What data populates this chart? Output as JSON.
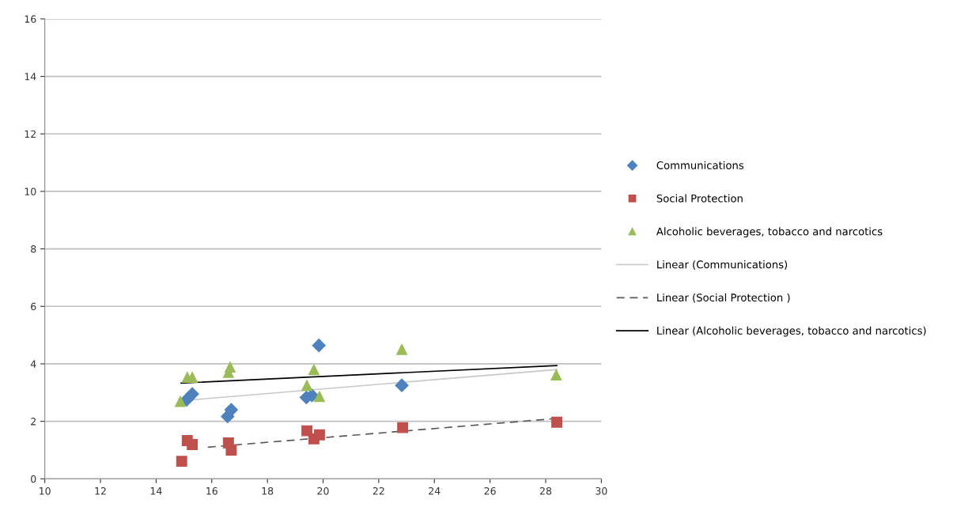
{
  "chart_data": {
    "type": "scatter",
    "xlim": [
      10,
      30
    ],
    "ylim": [
      0,
      16
    ],
    "xticks": [
      10,
      12,
      14,
      16,
      18,
      20,
      22,
      24,
      26,
      28,
      30
    ],
    "yticks": [
      0,
      2,
      4,
      6,
      8,
      10,
      12,
      14,
      16
    ],
    "grid": "y",
    "legend": "right",
    "series": [
      {
        "name": "Communications",
        "marker": "diamond",
        "color": "#4f81bd",
        "x": [
          15.1,
          15.3,
          16.57,
          16.7,
          19.85,
          19.4,
          19.6,
          22.83
        ],
        "values": [
          2.75,
          2.95,
          2.17,
          2.4,
          4.64,
          2.83,
          2.9,
          3.25
        ]
      },
      {
        "name": "Social Protection",
        "marker": "square",
        "color": "#c0504d",
        "x": [
          14.92,
          15.12,
          15.3,
          16.6,
          16.7,
          19.42,
          19.67,
          19.87,
          22.86,
          28.4
        ],
        "values": [
          0.61,
          1.33,
          1.19,
          1.25,
          1.0,
          1.67,
          1.39,
          1.53,
          1.78,
          1.97
        ]
      },
      {
        "name": "Alcoholic beverages, tobacco and narcotics",
        "marker": "triangle",
        "color": "#9bbb59",
        "x": [
          14.87,
          15.12,
          15.3,
          16.66,
          16.6,
          19.67,
          19.42,
          19.87,
          22.83,
          28.38
        ],
        "values": [
          2.69,
          3.53,
          3.53,
          3.89,
          3.7,
          3.8,
          3.25,
          2.86,
          4.5,
          3.61
        ]
      },
      {
        "name": "Linear (Communications)",
        "type": "line",
        "line_style": "solid",
        "color": "#c8c8c8",
        "x": [
          15.3,
          28.4
        ],
        "values": [
          2.75,
          3.8
        ]
      },
      {
        "name": "Linear (Social Protection )",
        "type": "line",
        "line_style": "dashed",
        "color": "#595959",
        "x": [
          15.86,
          28.4
        ],
        "values": [
          1.1,
          2.1
        ]
      },
      {
        "name": "Linear (Alcoholic beverages, tobacco and narcotics)",
        "type": "line",
        "line_style": "solid",
        "color": "#000000",
        "x": [
          14.9,
          28.4
        ],
        "values": [
          3.33,
          3.94
        ]
      }
    ]
  }
}
